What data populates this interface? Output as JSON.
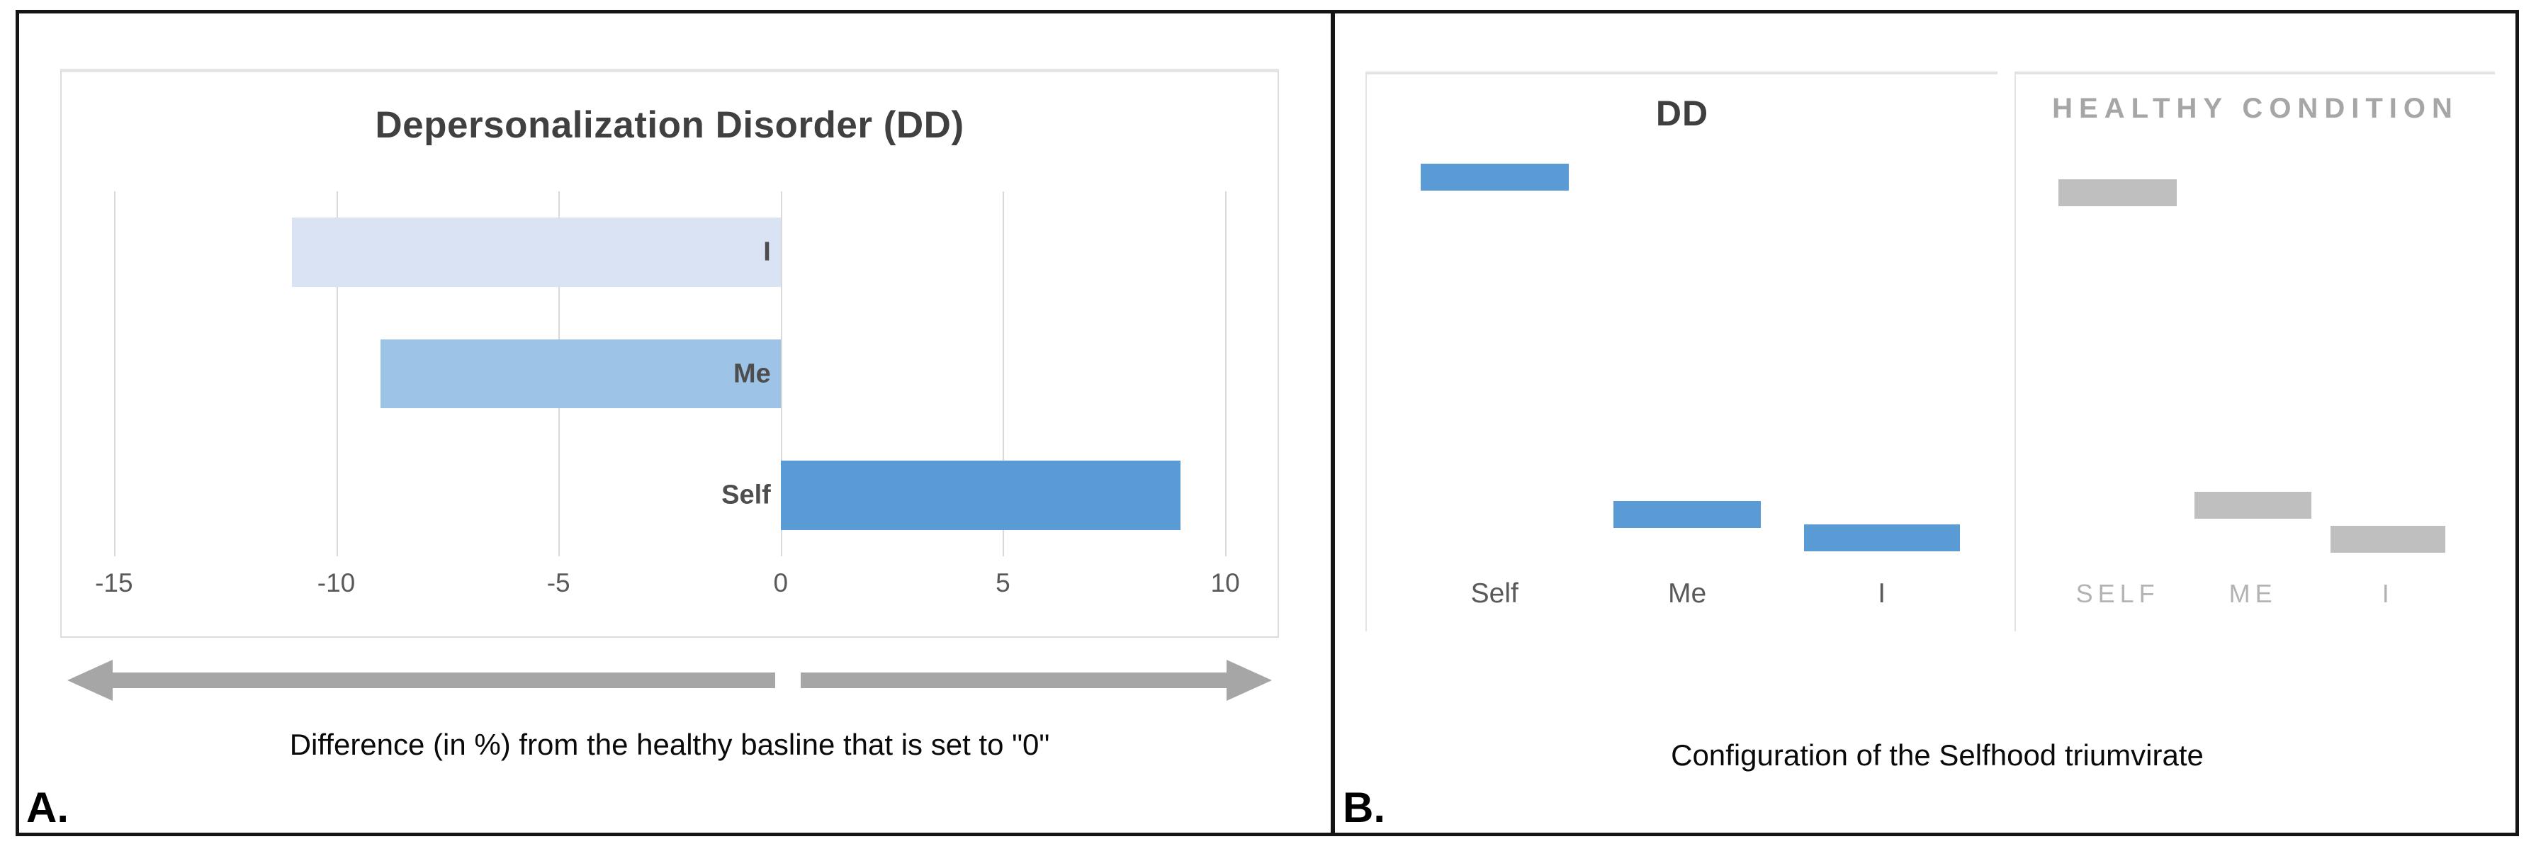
{
  "figure": {
    "panel_a_label": "A.",
    "panel_b_label": "B."
  },
  "panel_a": {
    "title": "Depersonalization Disorder (DD)",
    "caption": "Difference (in %) from the healthy basline that is set to \"0\""
  },
  "panel_b": {
    "caption": "Configuration of the Selfhood triumvirate"
  },
  "colors": {
    "bar_blue_strong": "#5b9bd5",
    "bar_blue_medium": "#9dc3e6",
    "bar_blue_light": "#dae3f3",
    "bar_gray": "#bfbfbf",
    "gridline": "#d9d9d9",
    "arrow_gray": "#a6a6a6",
    "axis_text": "#595959",
    "title_dark": "#404040",
    "healthy_title_gray": "#a6a6a6"
  },
  "chart_data": [
    {
      "id": "dd_difference_chart",
      "type": "bar",
      "orientation": "horizontal",
      "title": "Depersonalization Disorder (DD)",
      "categories": [
        "I",
        "Me",
        "Self"
      ],
      "values": [
        -11,
        -9,
        9
      ],
      "bar_colors": [
        "#dae3f3",
        "#9dc3e6",
        "#5b9bd5"
      ],
      "xlabel": "Difference (in %) from the healthy basline that is set to \"0\"",
      "xlim": [
        -15,
        10
      ],
      "xticks": [
        -15,
        -10,
        -5,
        0,
        5,
        10
      ],
      "grid": true,
      "legend": false
    },
    {
      "id": "selfhood_configuration_chart",
      "type": "level",
      "title": "Configuration of the Selfhood triumvirate",
      "groups": [
        {
          "name": "DD",
          "bar_color": "#5b9bd5",
          "items": [
            {
              "category": "Self",
              "x_pct": 8.5,
              "w_pct": 23.5,
              "y_pct": 18.5
            },
            {
              "category": "Me",
              "x_pct": 39.1,
              "w_pct": 23.4,
              "y_pct": 79.0
            },
            {
              "category": "I",
              "x_pct": 69.3,
              "w_pct": 24.7,
              "y_pct": 83.2
            }
          ]
        },
        {
          "name": "HEALTHY CONDITION",
          "bar_color": "#bfbfbf",
          "items": [
            {
              "category": "SELF",
              "x_pct": 8.9,
              "w_pct": 24.7,
              "y_pct": 21.3
            },
            {
              "category": "ME",
              "x_pct": 37.3,
              "w_pct": 24.4,
              "y_pct": 77.3
            },
            {
              "category": "I",
              "x_pct": 65.7,
              "w_pct": 24.0,
              "y_pct": 83.4
            }
          ]
        }
      ]
    }
  ]
}
